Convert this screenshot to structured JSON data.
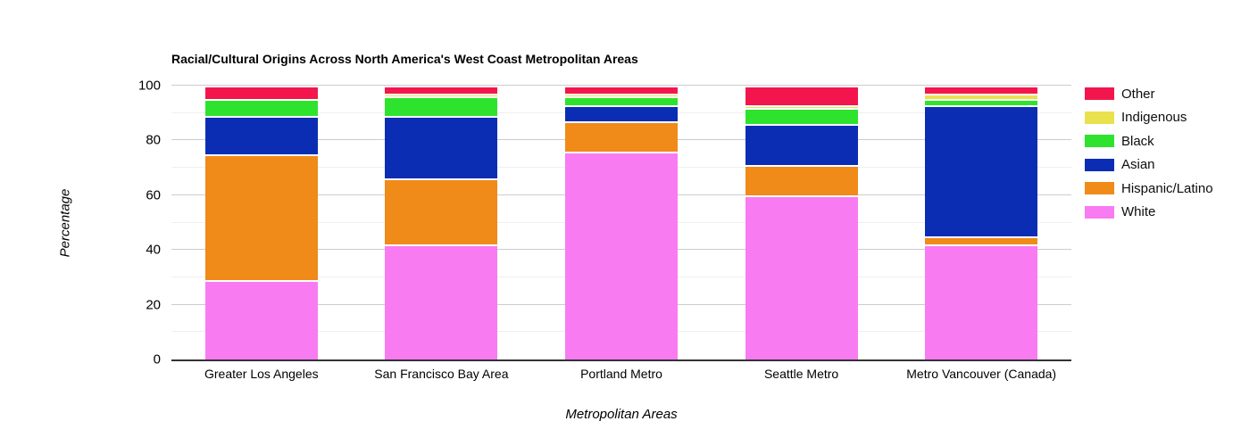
{
  "chart_data": {
    "type": "bar",
    "stacked": true,
    "title": "Racial/Cultural Origins Across North America's West Coast Metropolitan Areas",
    "xlabel": "Metropolitan Areas",
    "ylabel": "Percentage",
    "ylim": [
      0,
      100
    ],
    "y_ticks": [
      0,
      20,
      40,
      60,
      80,
      100
    ],
    "y_minor_gridlines": [
      10,
      30,
      50,
      70,
      90
    ],
    "grid": true,
    "legend_position": "right",
    "background_color": "#ffffff",
    "major_gridline_color": "#cccccc",
    "minor_gridline_color": "#efefef",
    "baseline_color": "#333333",
    "categories": [
      "Greater Los Angeles",
      "San Francisco Bay Area",
      "Portland Metro",
      "Seattle Metro",
      "Metro Vancouver (Canada)"
    ],
    "series": [
      {
        "name": "White",
        "color": "#F97BF2",
        "values": [
          29,
          42,
          76,
          60,
          42
        ]
      },
      {
        "name": "Hispanic/Latino",
        "color": "#F08A18",
        "values": [
          46,
          24,
          11,
          11,
          3
        ]
      },
      {
        "name": "Asian",
        "color": "#0B2DB4",
        "values": [
          14,
          23,
          6,
          15,
          48
        ]
      },
      {
        "name": "Black",
        "color": "#2EE32E",
        "values": [
          6,
          7,
          3,
          6,
          2
        ]
      },
      {
        "name": "Indigenous",
        "color": "#E9E24C",
        "values": [
          0,
          1,
          1,
          1,
          2
        ]
      },
      {
        "name": "Other",
        "color": "#F3164E",
        "values": [
          5,
          3,
          3,
          7,
          3
        ]
      }
    ],
    "legend_order": [
      "Other",
      "Indigenous",
      "Black",
      "Asian",
      "Hispanic/Latino",
      "White"
    ]
  }
}
